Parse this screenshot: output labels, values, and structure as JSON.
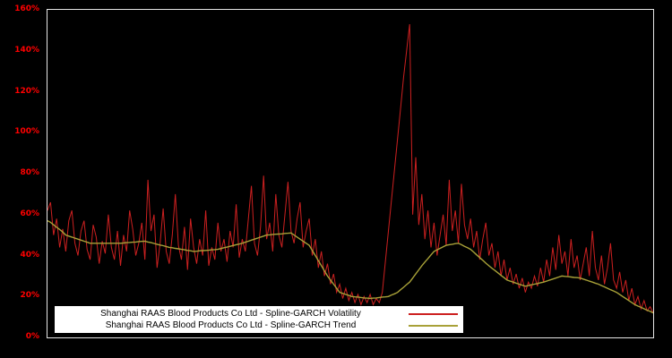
{
  "figure": {
    "background": "#000000",
    "border_color": "#e6e6e6"
  },
  "y_axis": {
    "ticks": [
      "0%",
      "20%",
      "40%",
      "60%",
      "80%",
      "100%",
      "120%",
      "140%",
      "160%"
    ],
    "min": 0,
    "max": 160,
    "label_color": "#ff0000"
  },
  "x_axis": {
    "ticks": []
  },
  "legend": {
    "entries": [
      {
        "label": "Shanghai RAAS Blood Products Co Ltd - Spline-GARCH Volatility",
        "color": "#cc2020"
      },
      {
        "label": "Shanghai RAAS Blood Products Co Ltd - Spline-GARCH Trend",
        "color": "#a8a138"
      }
    ]
  },
  "chart_data": {
    "type": "line",
    "title": "",
    "y_unit": "%",
    "ylim": [
      0,
      160
    ],
    "grid": false,
    "legend_position": "bottom-left-inside",
    "series": [
      {
        "name": "Shanghai RAAS Blood Products Co Ltd - Spline-GARCH Volatility",
        "color": "#cc2020",
        "width": 1,
        "values": [
          62,
          66,
          50,
          58,
          44,
          53,
          42,
          57,
          62,
          46,
          40,
          52,
          57,
          43,
          38,
          55,
          49,
          36,
          47,
          41,
          60,
          44,
          38,
          52,
          35,
          50,
          42,
          62,
          53,
          40,
          46,
          56,
          38,
          77,
          52,
          60,
          34,
          46,
          63,
          42,
          36,
          50,
          70,
          45,
          38,
          54,
          33,
          58,
          44,
          36,
          48,
          40,
          62,
          35,
          44,
          38,
          56,
          42,
          48,
          37,
          52,
          44,
          65,
          39,
          48,
          42,
          58,
          74,
          46,
          40,
          54,
          79,
          48,
          56,
          42,
          70,
          50,
          44,
          60,
          76,
          52,
          46,
          58,
          66,
          44,
          52,
          58,
          40,
          48,
          34,
          42,
          30,
          36,
          26,
          31,
          22,
          26,
          19,
          24,
          18,
          22,
          17,
          21,
          16,
          20,
          17,
          21,
          16,
          19,
          17,
          22,
          37,
          52,
          67,
          82,
          97,
          112,
          127,
          140,
          153,
          60,
          88,
          55,
          70,
          48,
          62,
          44,
          56,
          40,
          50,
          60,
          45,
          77,
          52,
          62,
          46,
          75,
          55,
          48,
          58,
          44,
          52,
          38,
          48,
          56,
          40,
          46,
          34,
          42,
          30,
          38,
          28,
          34,
          26,
          31,
          24,
          29,
          22,
          27,
          24,
          30,
          25,
          34,
          27,
          38,
          30,
          44,
          33,
          50,
          36,
          42,
          30,
          48,
          34,
          40,
          28,
          36,
          44,
          30,
          52,
          34,
          28,
          40,
          26,
          34,
          46,
          28,
          24,
          32,
          22,
          28,
          18,
          24,
          16,
          20,
          14,
          18,
          13,
          15,
          12
        ]
      },
      {
        "name": "Shanghai RAAS Blood Products Co Ltd - Spline-GARCH Trend",
        "color": "#a8a138",
        "width": 1.4,
        "values": [
          57,
          56.2,
          55,
          53.8,
          52.7,
          51.5,
          50,
          49.5,
          49,
          48.5,
          48,
          47.5,
          47,
          46.5,
          46,
          46,
          46,
          46,
          46,
          46,
          46,
          46,
          46,
          46,
          46,
          46.1,
          46.3,
          46.4,
          46.5,
          46.6,
          46.8,
          46.9,
          47,
          46.6,
          46.3,
          45.9,
          45.5,
          45.1,
          44.8,
          44.4,
          44,
          43.8,
          43.5,
          43.3,
          43,
          42.8,
          42.5,
          42.3,
          42,
          42.1,
          42.3,
          42.4,
          42.5,
          42.6,
          42.8,
          42.9,
          43,
          43.4,
          43.8,
          44.1,
          44.5,
          44.9,
          45.3,
          45.6,
          46,
          46.5,
          47,
          47.5,
          48,
          48.5,
          49,
          49.5,
          50,
          50.1,
          50.3,
          50.4,
          50.5,
          50.6,
          50.8,
          50.9,
          51,
          50,
          49,
          48,
          47,
          46,
          45,
          42.5,
          40,
          37.5,
          35,
          32.5,
          30,
          28,
          26,
          24,
          22,
          21.5,
          21,
          20.5,
          20,
          19.8,
          19.7,
          19.5,
          19.3,
          19.2,
          19,
          19.2,
          19.3,
          19.5,
          19.7,
          19.8,
          20,
          20.7,
          21.3,
          22,
          23.3,
          24.5,
          25.8,
          27,
          29,
          31,
          33,
          35,
          36.8,
          38.5,
          40.3,
          42,
          42.8,
          43.5,
          44.3,
          45,
          45.3,
          45.5,
          45.8,
          46,
          45.3,
          44.5,
          43.8,
          43,
          41.7,
          40.3,
          39,
          37.7,
          36.3,
          35,
          33.8,
          32.7,
          31.5,
          30.3,
          29.2,
          28,
          27.5,
          27,
          26.5,
          26,
          25.5,
          25,
          25.3,
          25.7,
          26,
          26.3,
          26.7,
          27,
          27.5,
          28,
          28.5,
          29,
          29.5,
          30,
          29.8,
          29.7,
          29.5,
          29.3,
          29.2,
          29,
          28.5,
          28,
          27.5,
          27,
          26.5,
          26,
          25.3,
          24.7,
          24,
          23.3,
          22.7,
          22,
          21,
          20,
          19,
          18,
          17,
          16,
          15.3,
          14.7,
          14,
          13.3,
          12.7,
          12
        ]
      }
    ]
  }
}
